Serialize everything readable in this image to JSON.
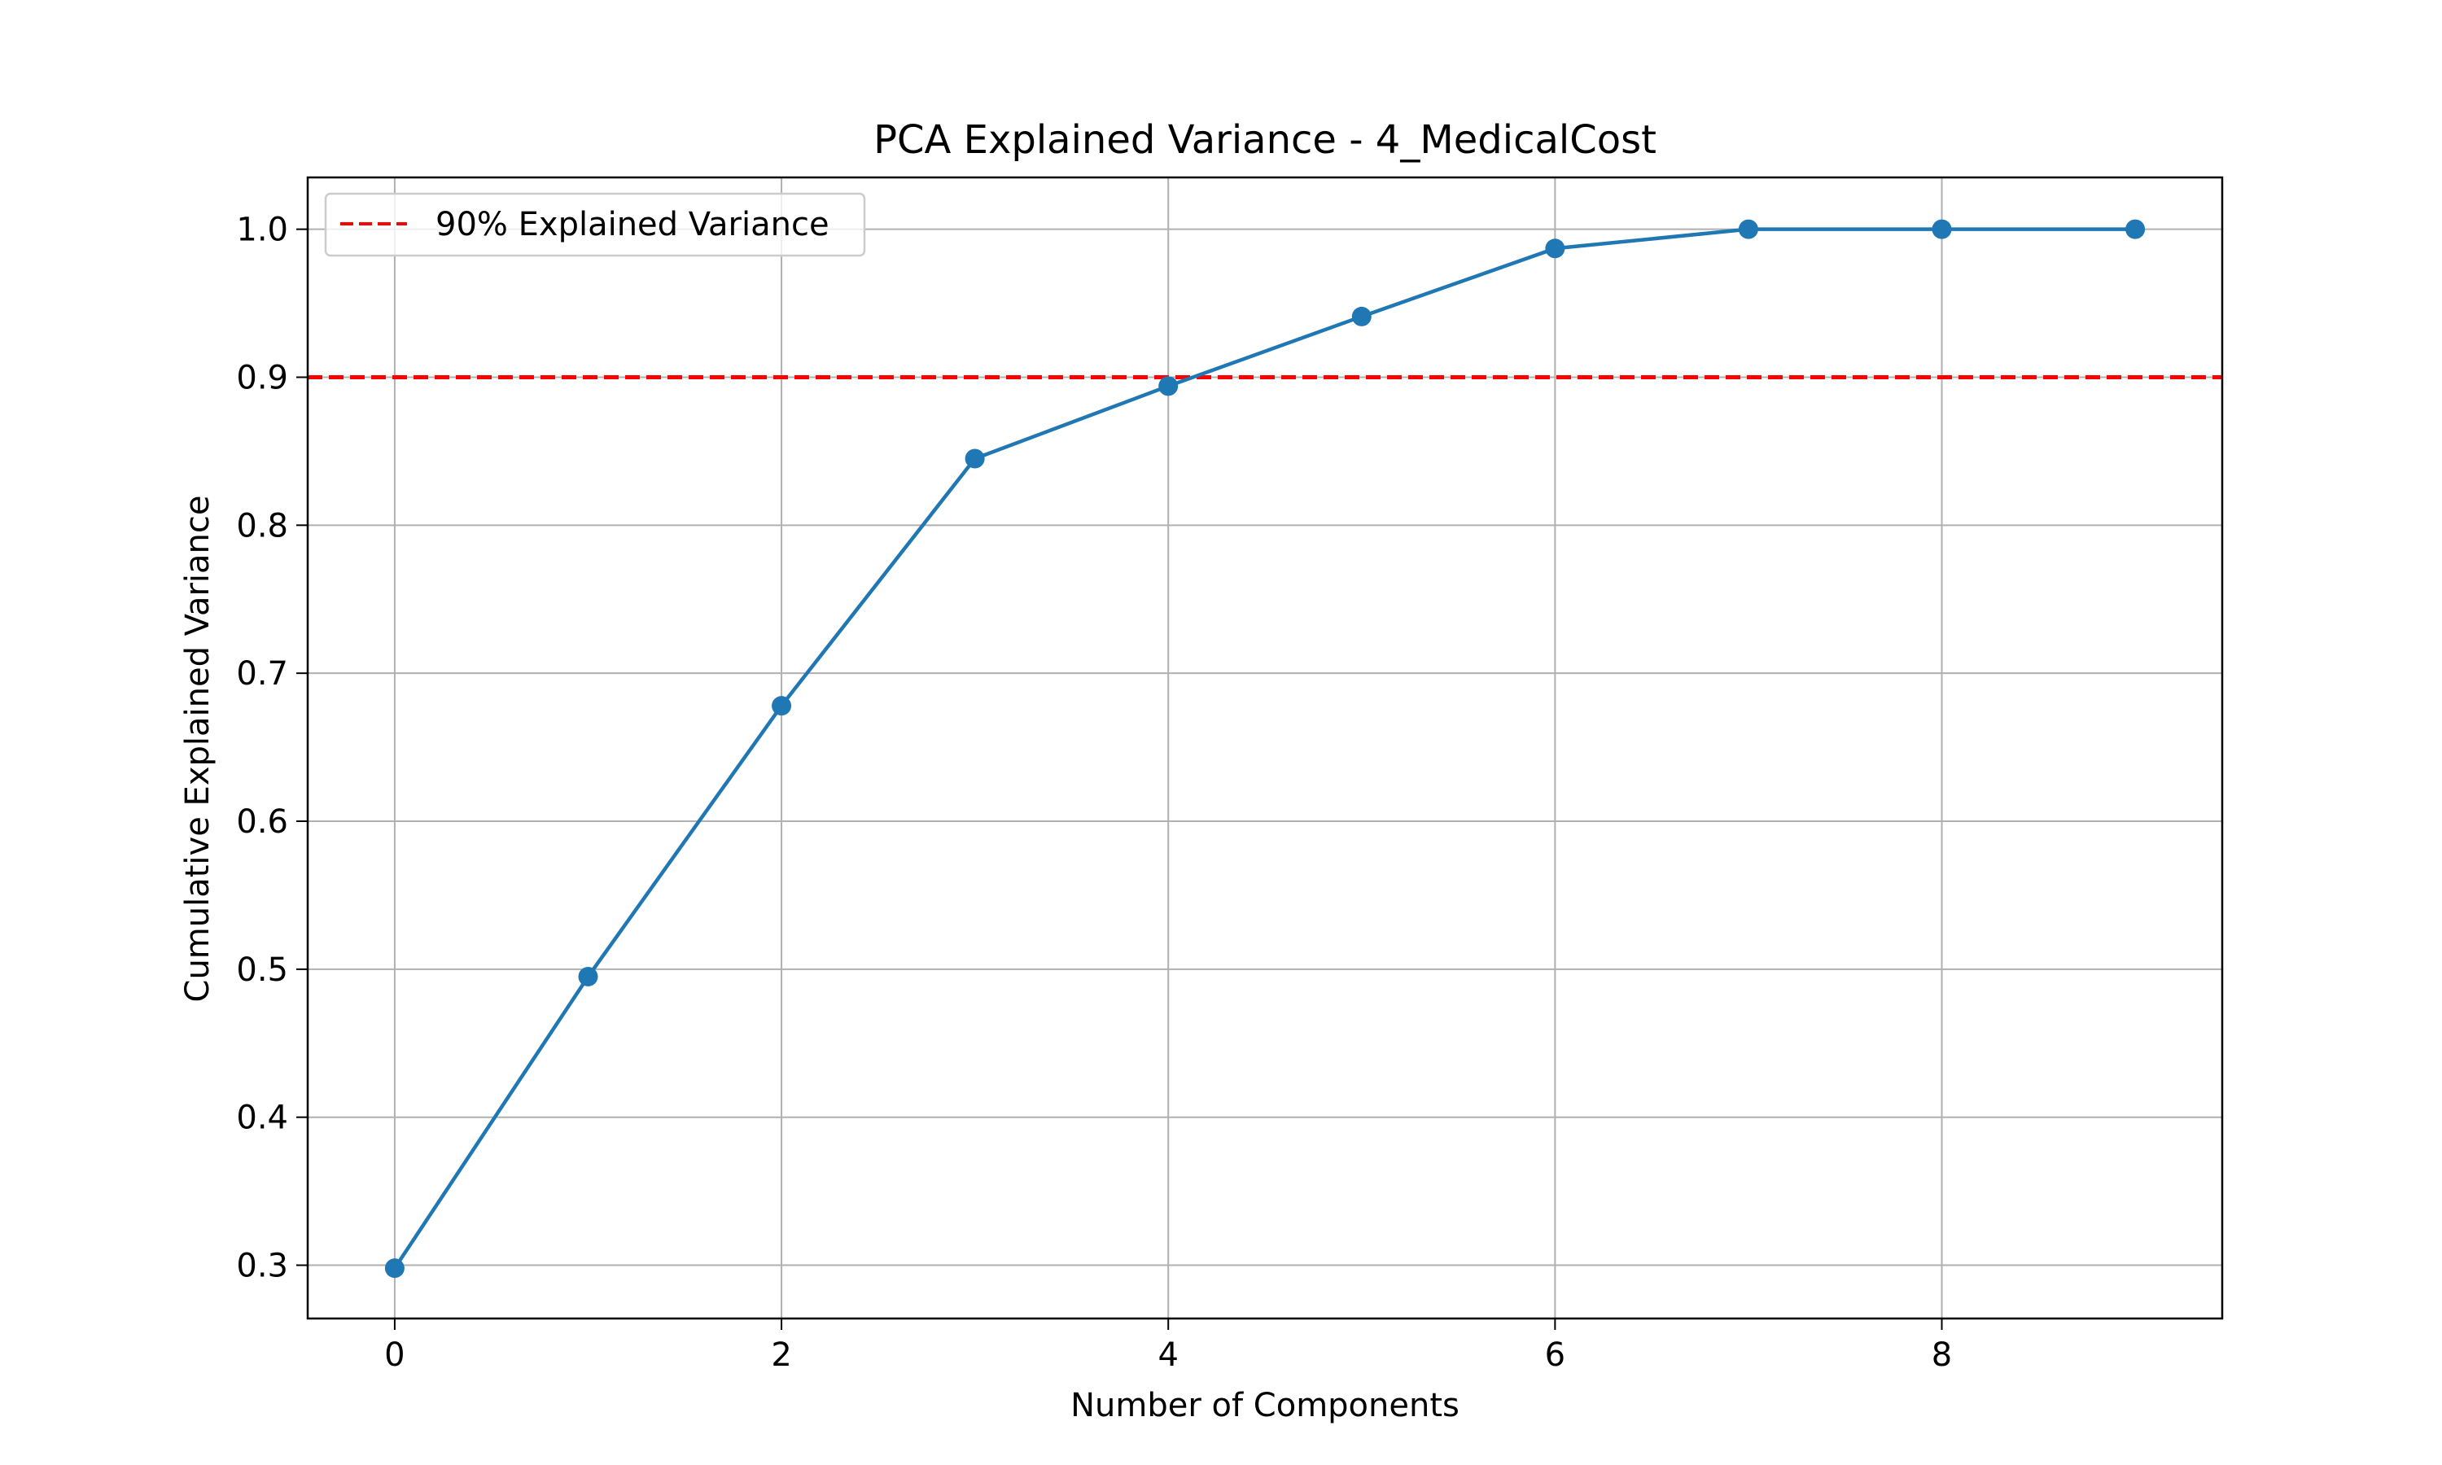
{
  "chart_data": {
    "type": "line",
    "title": "PCA Explained Variance - 4_MedicalCost",
    "xlabel": "Number of Components",
    "ylabel": "Cumulative Explained Variance",
    "xlim": [
      -0.45,
      9.45
    ],
    "ylim": [
      0.264,
      1.035
    ],
    "xticks": [
      0,
      2,
      4,
      6,
      8
    ],
    "yticks": [
      0.3,
      0.4,
      0.5,
      0.6,
      0.7,
      0.8,
      0.9,
      1.0
    ],
    "xtick_labels": [
      "0",
      "2",
      "4",
      "6",
      "8"
    ],
    "ytick_labels": [
      "0.3",
      "0.4",
      "0.5",
      "0.6",
      "0.7",
      "0.8",
      "0.9",
      "1.0"
    ],
    "grid": true,
    "series": [
      {
        "x": [
          0,
          1,
          2,
          3,
          4,
          5,
          6,
          7,
          8,
          9
        ],
        "values": [
          0.298,
          0.495,
          0.678,
          0.845,
          0.894,
          0.941,
          0.987,
          1.0,
          1.0,
          1.0
        ],
        "color": "#1f77b4",
        "marker": "circle"
      }
    ],
    "reference_lines": [
      {
        "orientation": "horizontal",
        "y": 0.9,
        "style": "dashed",
        "color": "#ff0000",
        "label": "90% Explained Variance"
      }
    ],
    "legend": {
      "placement": "top-left",
      "entries": [
        "90% Explained Variance"
      ]
    }
  }
}
